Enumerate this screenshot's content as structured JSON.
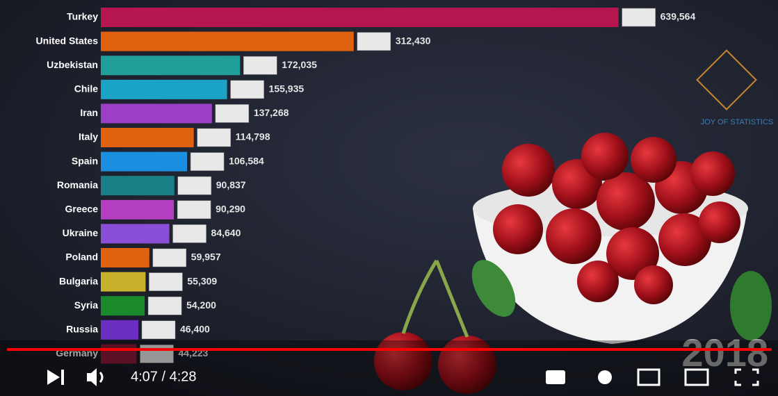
{
  "chart_data": {
    "type": "bar",
    "orientation": "horizontal",
    "categories": [
      "Turkey",
      "United States",
      "Uzbekistan",
      "Chile",
      "Iran",
      "Italy",
      "Spain",
      "Romania",
      "Greece",
      "Ukraine",
      "Poland",
      "Bulgaria",
      "Syria",
      "Russia",
      "Germany"
    ],
    "values": [
      639564,
      312430,
      172035,
      155935,
      137268,
      114798,
      106584,
      90837,
      90290,
      84640,
      59957,
      55309,
      54200,
      46400,
      44223
    ],
    "value_labels": [
      "639,564",
      "312,430",
      "172,035",
      "155,935",
      "137,268",
      "114,798",
      "106,584",
      "90,837",
      "90,290",
      "84,640",
      "59,957",
      "55,309",
      "54,200",
      "46,400",
      "44,223"
    ],
    "colors": [
      "#b5164f",
      "#e0610f",
      "#1f9e9a",
      "#1ba3c6",
      "#9b3fc7",
      "#e0610f",
      "#1a8fe0",
      "#1a7f86",
      "#b53fc2",
      "#8a4fd6",
      "#e0610f",
      "#c8b22d",
      "#1a8a2a",
      "#6a2fc0",
      "#8a1a3a"
    ],
    "xlim": [
      0,
      700000
    ],
    "year": "2018"
  },
  "watermark": "JOY OF STATISTICS",
  "player": {
    "time": "4:07 / 4:28"
  }
}
